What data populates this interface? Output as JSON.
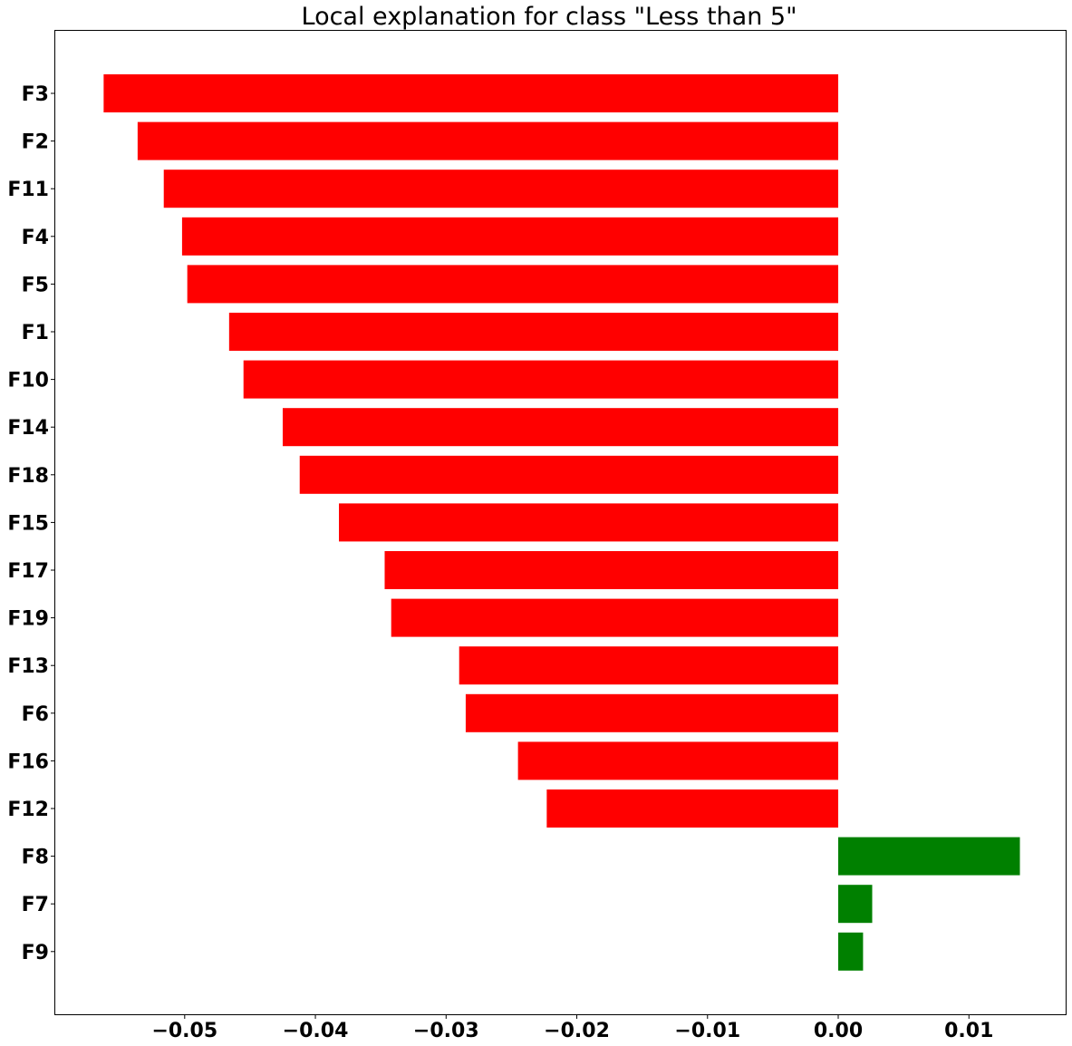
{
  "chart_data": {
    "type": "bar",
    "orientation": "horizontal",
    "title": "Local explanation for class \"Less than 5\"",
    "xlabel": "",
    "ylabel": "",
    "categories": [
      "F3",
      "F2",
      "F11",
      "F4",
      "F5",
      "F1",
      "F10",
      "F14",
      "F18",
      "F15",
      "F17",
      "F19",
      "F13",
      "F6",
      "F16",
      "F12",
      "F8",
      "F7",
      "F9"
    ],
    "values": [
      -0.0562,
      -0.0536,
      -0.0516,
      -0.0502,
      -0.0498,
      -0.0466,
      -0.0455,
      -0.0425,
      -0.0412,
      -0.0382,
      -0.0347,
      -0.0342,
      -0.029,
      -0.0285,
      -0.0245,
      -0.0223,
      0.0139,
      0.0026,
      0.0019
    ],
    "xlim": [
      -0.0599,
      0.0174
    ],
    "xticks": [
      -0.05,
      -0.04,
      -0.03,
      -0.02,
      -0.01,
      0.0,
      0.01
    ],
    "xtick_labels": [
      "−0.05",
      "−0.04",
      "−0.03",
      "−0.02",
      "−0.01",
      "0.00",
      "0.01"
    ],
    "grid": false,
    "colors": {
      "negative": "#ff0000",
      "positive": "#008000"
    }
  }
}
